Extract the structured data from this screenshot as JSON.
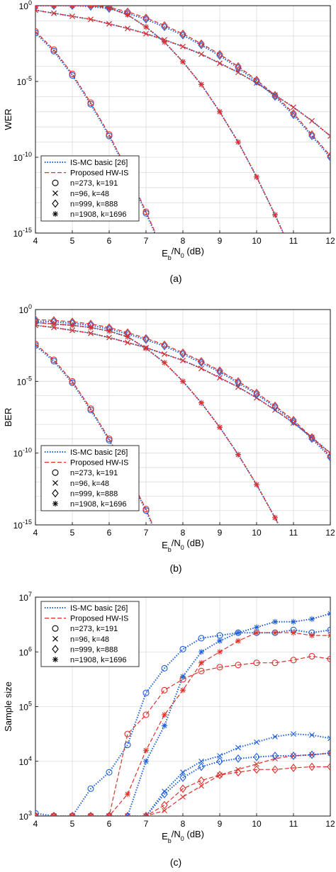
{
  "chart_data": [
    {
      "type": "line",
      "caption": "(a)",
      "ylabel": "WER",
      "xlabel": "E_b/N_0 (dB)",
      "xlim": [
        4,
        12
      ],
      "ylim_log10": [
        -15,
        0
      ],
      "yscale": "log",
      "grid": true,
      "legend_position": "bottom-left",
      "x_ticks": [
        "4",
        "5",
        "6",
        "7",
        "8",
        "9",
        "10",
        "11",
        "12"
      ],
      "y_ticks": [
        {
          "base": "10",
          "exp": "-15",
          "v": -15
        },
        {
          "base": "10",
          "exp": "-10",
          "v": -10
        },
        {
          "base": "10",
          "exp": "-5",
          "v": -5
        },
        {
          "base": "10",
          "exp": "0",
          "v": 0
        }
      ],
      "series": [
        {
          "name": "n=273, k=191",
          "marker": "circle",
          "x": [
            4,
            4.5,
            5,
            5.5,
            6,
            6.5,
            7,
            7.5,
            8,
            8.5
          ],
          "log10_y": [
            -1.8,
            -3.0,
            -4.6,
            -6.5,
            -8.6,
            -11.0,
            -13.7,
            -16.4,
            -19.5,
            -23.0
          ],
          "hw_offset": 0.1
        },
        {
          "name": "n=96, k=48",
          "marker": "x",
          "x": [
            4,
            4.5,
            5,
            5.5,
            6,
            6.5,
            7,
            7.5,
            8,
            8.5,
            9,
            9.5,
            10,
            10.5,
            11,
            11.5,
            12
          ],
          "log10_y": [
            -0.3,
            -0.5,
            -0.7,
            -0.9,
            -1.2,
            -1.5,
            -1.85,
            -2.25,
            -2.7,
            -3.2,
            -3.8,
            -4.4,
            -5.1,
            -5.9,
            -6.7,
            -7.6,
            -8.6
          ],
          "hw_offset": 0.0
        },
        {
          "name": "n=999, k=888",
          "marker": "diamond",
          "x": [
            4,
            4.5,
            5,
            5.5,
            6,
            6.5,
            7,
            7.5,
            8,
            8.5,
            9,
            9.5,
            10,
            10.5,
            11,
            11.5,
            12
          ],
          "log10_y": [
            0,
            0,
            0,
            -0.05,
            -0.2,
            -0.5,
            -0.9,
            -1.4,
            -1.95,
            -2.6,
            -3.3,
            -4.1,
            -5.0,
            -6.0,
            -7.2,
            -8.6,
            -10.0
          ],
          "hw_offset": 0.1
        },
        {
          "name": "n=1908, k=1696",
          "marker": "asterisk",
          "x": [
            4,
            4.5,
            5,
            5.5,
            6,
            6.5,
            7,
            7.5,
            8,
            8.5,
            9,
            9.5,
            10,
            10.5,
            11,
            11.5,
            12
          ],
          "log10_y": [
            0,
            0,
            0,
            0,
            -0.15,
            -0.6,
            -1.4,
            -2.4,
            -3.7,
            -5.2,
            -7.0,
            -9.0,
            -11.3,
            -13.8,
            -16.5,
            -19.5,
            -22.8
          ],
          "hw_offset": 0.0
        }
      ],
      "legend": [
        "IS-MC basic [26]",
        "Proposed HW-IS",
        "n=273, k=191",
        "n=96, k=48",
        "n=999, k=888",
        "n=1908, k=1696"
      ]
    },
    {
      "type": "line",
      "caption": "(b)",
      "ylabel": "BER",
      "xlabel": "E_b/N_0 (dB)",
      "xlim": [
        4,
        12
      ],
      "ylim_log10": [
        -15,
        0
      ],
      "yscale": "log",
      "grid": true,
      "legend_position": "bottom-left",
      "x_ticks": [
        "4",
        "5",
        "6",
        "7",
        "8",
        "9",
        "10",
        "11",
        "12"
      ],
      "y_ticks": [
        {
          "base": "10",
          "exp": "-15",
          "v": -15
        },
        {
          "base": "10",
          "exp": "-10",
          "v": -10
        },
        {
          "base": "10",
          "exp": "-5",
          "v": -5
        },
        {
          "base": "10",
          "exp": "0",
          "v": 0
        }
      ],
      "series": [
        {
          "name": "n=273, k=191",
          "marker": "circle",
          "x": [
            4,
            4.5,
            5,
            5.5,
            6,
            6.5,
            7,
            7.5,
            8,
            8.5
          ],
          "log10_y": [
            -2.5,
            -3.6,
            -5.1,
            -7.0,
            -9.1,
            -11.5,
            -14.0,
            -17.0,
            -20.0,
            -23.5
          ],
          "hw_offset": 0.1
        },
        {
          "name": "n=96, k=48",
          "marker": "x",
          "x": [
            4,
            4.5,
            5,
            5.5,
            6,
            6.5,
            7,
            7.5,
            8,
            8.5,
            9,
            9.5,
            10,
            10.5,
            11,
            11.5,
            12
          ],
          "log10_y": [
            -1.1,
            -1.25,
            -1.45,
            -1.65,
            -1.95,
            -2.3,
            -2.65,
            -3.1,
            -3.55,
            -4.1,
            -4.75,
            -5.4,
            -6.15,
            -7.0,
            -7.9,
            -8.9,
            -10.0
          ],
          "hw_offset": 0.0
        },
        {
          "name": "n=999, k=888",
          "marker": "diamond",
          "x": [
            4,
            4.5,
            5,
            5.5,
            6,
            6.5,
            7,
            7.5,
            8,
            8.5,
            9,
            9.5,
            10,
            10.5,
            11,
            11.5,
            12
          ],
          "log10_y": [
            -0.8,
            -0.85,
            -0.95,
            -1.1,
            -1.35,
            -1.7,
            -2.1,
            -2.55,
            -3.1,
            -3.7,
            -4.35,
            -5.1,
            -5.9,
            -6.8,
            -7.8,
            -9.0,
            -10.3
          ],
          "hw_offset": 0.1
        },
        {
          "name": "n=1908, k=1696",
          "marker": "asterisk",
          "x": [
            4,
            4.5,
            5,
            5.5,
            6,
            6.5,
            7,
            7.5,
            8,
            8.5,
            9,
            9.5,
            10,
            10.5,
            11,
            11.5,
            12
          ],
          "log10_y": [
            -0.9,
            -1.0,
            -1.1,
            -1.25,
            -1.5,
            -1.9,
            -2.7,
            -3.7,
            -5.0,
            -6.5,
            -8.2,
            -10.1,
            -12.2,
            -14.5,
            -17.0,
            -19.8,
            -23.0
          ],
          "hw_offset": 0.0
        }
      ],
      "legend": [
        "IS-MC basic [26]",
        "Proposed HW-IS",
        "n=273, k=191",
        "n=96, k=48",
        "n=999, k=888",
        "n=1908, k=1696"
      ]
    },
    {
      "type": "line",
      "caption": "(c)",
      "ylabel": "Sample size",
      "xlabel": "E_b/N_0 (dB)",
      "xlim": [
        4,
        12
      ],
      "ylim_log10": [
        3,
        7
      ],
      "yscale": "log",
      "grid": true,
      "legend_position": "top-left",
      "x_ticks": [
        "4",
        "5",
        "6",
        "7",
        "8",
        "9",
        "10",
        "11",
        "12"
      ],
      "y_ticks": [
        {
          "base": "10",
          "exp": "3",
          "v": 3
        },
        {
          "base": "10",
          "exp": "4",
          "v": 4
        },
        {
          "base": "10",
          "exp": "5",
          "v": 5
        },
        {
          "base": "10",
          "exp": "6",
          "v": 6
        },
        {
          "base": "10",
          "exp": "7",
          "v": 7
        }
      ],
      "series": [
        {
          "name": "n=273, k=191",
          "marker": "circle",
          "x": [
            4,
            4.5,
            5,
            5.5,
            6,
            6.5,
            7,
            7.5,
            8,
            8.5,
            9,
            9.5,
            10,
            10.5,
            11,
            11.5,
            12
          ],
          "blue_log10": [
            3.05,
            3.0,
            3.0,
            3.5,
            3.8,
            4.3,
            5.25,
            5.7,
            6.05,
            6.25,
            6.3,
            6.35,
            6.35,
            6.35,
            6.4,
            6.35,
            6.4
          ],
          "red_log10": [
            3.0,
            3.0,
            3.0,
            3.0,
            3.0,
            4.5,
            4.85,
            5.3,
            5.5,
            5.65,
            5.72,
            5.76,
            5.8,
            5.8,
            5.85,
            5.92,
            5.87
          ]
        },
        {
          "name": "n=96, k=48",
          "marker": "x",
          "x": [
            4,
            4.5,
            5,
            5.5,
            6,
            6.5,
            7,
            7.5,
            8,
            8.5,
            9,
            9.5,
            10,
            10.5,
            11,
            11.5,
            12
          ],
          "blue_log10": [
            3.0,
            3.0,
            3.0,
            3.0,
            3.0,
            3.0,
            3.0,
            3.45,
            3.8,
            4.0,
            4.1,
            4.25,
            4.35,
            4.45,
            4.5,
            4.48,
            4.42
          ],
          "red_log10": [
            3.0,
            3.0,
            3.0,
            3.0,
            3.0,
            3.0,
            3.0,
            3.1,
            3.35,
            3.55,
            3.75,
            3.85,
            3.95,
            4.05,
            4.1,
            4.12,
            4.15
          ]
        },
        {
          "name": "n=999, k=888",
          "marker": "diamond",
          "x": [
            4,
            4.5,
            5,
            5.5,
            6,
            6.5,
            7,
            7.5,
            8,
            8.5,
            9,
            9.5,
            10,
            10.5,
            11,
            11.5,
            12
          ],
          "blue_log10": [
            3.0,
            3.0,
            3.0,
            3.0,
            3.0,
            3.0,
            3.0,
            3.4,
            3.7,
            3.9,
            4.0,
            4.05,
            4.08,
            4.1,
            4.1,
            4.12,
            4.15
          ],
          "red_log10": [
            3.0,
            3.0,
            3.0,
            3.0,
            3.0,
            3.0,
            3.0,
            3.2,
            3.5,
            3.65,
            3.75,
            3.8,
            3.85,
            3.85,
            3.88,
            3.9,
            3.9
          ]
        },
        {
          "name": "n=1908, k=1696",
          "marker": "asterisk",
          "x": [
            4,
            4.5,
            5,
            5.5,
            6,
            6.5,
            7,
            7.5,
            8,
            8.5,
            9,
            9.5,
            10,
            10.5,
            11,
            11.5,
            12
          ],
          "blue_log10": [
            3.0,
            3.0,
            3.0,
            3.0,
            3.0,
            3.0,
            4.0,
            4.65,
            5.55,
            6.0,
            6.2,
            6.35,
            6.45,
            6.55,
            6.55,
            6.6,
            6.7
          ],
          "red_log10": [
            3.0,
            3.0,
            3.0,
            3.0,
            3.0,
            3.4,
            4.2,
            4.85,
            5.3,
            5.8,
            6.0,
            6.2,
            6.35,
            6.35,
            6.35,
            6.3,
            6.3
          ]
        }
      ],
      "legend": [
        "IS-MC basic [26]",
        "Proposed HW-IS",
        "n=273, k=191",
        "n=96, k=48",
        "n=999, k=888",
        "n=1908, k=1696"
      ]
    }
  ],
  "colors": {
    "ismc": "#1f5fd6",
    "hwis": "#e0302b",
    "grid": "#dcdcdc",
    "axis": "#000000"
  }
}
